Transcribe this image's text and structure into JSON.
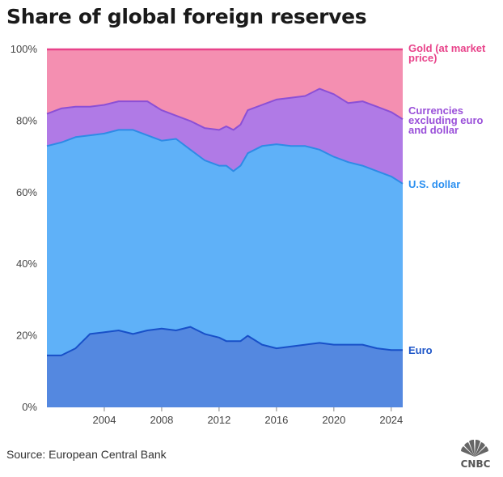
{
  "title": "Share of global foreign reserves",
  "source": "Source: European Central Bank",
  "logo": {
    "icon": "peacock-icon",
    "text": "CNBC"
  },
  "colors": {
    "gold_fill": "#f48fb1",
    "gold_line": "#e8438a",
    "currencies_fill": "#b07ae6",
    "currencies_line": "#8b4fd6",
    "usd_fill": "#5fb1f8",
    "usd_line": "#2e8be6",
    "euro_fill": "#5488e0",
    "euro_line": "#1850c8",
    "label_gold": "#e8438a",
    "label_currencies": "#9a50d9",
    "label_usd": "#2a8ff0",
    "label_euro": "#1e56c8"
  },
  "chart_data": {
    "type": "area",
    "stacked": true,
    "title": "Share of global foreign reserves",
    "xlabel": "",
    "ylabel": "",
    "xlim": [
      2000,
      2024.8
    ],
    "ylim": [
      0,
      100
    ],
    "x_ticks": [
      "2004",
      "2008",
      "2012",
      "2016",
      "2020",
      "2024"
    ],
    "y_ticks": [
      "0%",
      "20%",
      "40%",
      "60%",
      "80%",
      "100%"
    ],
    "grid": false,
    "legend": "direct labels at right end",
    "x": [
      2000,
      2001,
      2002,
      2003,
      2004,
      2005,
      2006,
      2007,
      2008,
      2009,
      2010,
      2011,
      2012,
      2012.5,
      2013,
      2013.5,
      2014,
      2015,
      2016,
      2017,
      2018,
      2019,
      2020,
      2021,
      2022,
      2023,
      2024,
      2024.8
    ],
    "cumulative_boundaries": [
      {
        "name": "Euro",
        "values": [
          14.5,
          14.5,
          16.5,
          20.5,
          21,
          21.5,
          20.5,
          21.5,
          22,
          21.5,
          22.5,
          20.5,
          19.5,
          18.5,
          18.5,
          18.5,
          20,
          17.5,
          16.5,
          17,
          17.5,
          18,
          17.5,
          17.5,
          17.5,
          16.5,
          16,
          16
        ]
      },
      {
        "name": "U.S. dollar",
        "values": [
          73,
          74,
          75.5,
          76,
          76.5,
          77.5,
          77.5,
          76,
          74.5,
          75,
          72,
          69,
          67.5,
          67.5,
          66,
          67.5,
          71,
          73,
          73.5,
          73,
          73,
          72,
          70,
          68.5,
          67.5,
          66,
          64.5,
          62.5
        ]
      },
      {
        "name": "Currencies excluding euro and dollar",
        "values": [
          82,
          83.5,
          84,
          84,
          84.5,
          85.5,
          85.5,
          85.5,
          83,
          81.5,
          80,
          78,
          77.5,
          78.5,
          77.5,
          79,
          83,
          84.5,
          86,
          86.5,
          87,
          89,
          87.5,
          85,
          85.5,
          84,
          82.5,
          80.5
        ]
      },
      {
        "name": "Gold (at market price)",
        "values": [
          100,
          100,
          100,
          100,
          100,
          100,
          100,
          100,
          100,
          100,
          100,
          100,
          100,
          100,
          100,
          100,
          100,
          100,
          100,
          100,
          100,
          100,
          100,
          100,
          100,
          100,
          100,
          100
        ]
      }
    ],
    "series_labels": {
      "gold": [
        "Gold (at market",
        "price)"
      ],
      "currencies": [
        "Currencies",
        "excluding euro",
        "and dollar"
      ],
      "usd": [
        "U.S. dollar"
      ],
      "euro": [
        "Euro"
      ]
    }
  }
}
